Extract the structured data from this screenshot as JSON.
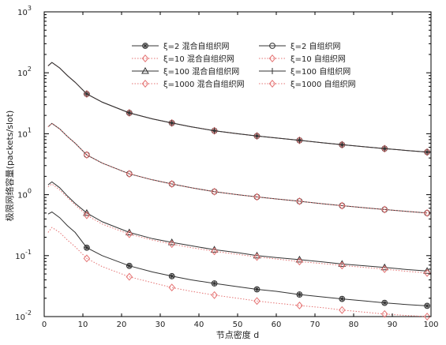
{
  "chart_data": {
    "type": "line",
    "xlabel": "节点密度 d",
    "ylabel": "极限网络容量(packets/slot)",
    "xlim": [
      0,
      100
    ],
    "ylim": [
      0.01,
      1000
    ],
    "yscale": "log",
    "grid": false,
    "legend_position": "top",
    "x_ticks": [
      0,
      10,
      20,
      30,
      40,
      50,
      60,
      70,
      80,
      90,
      100
    ],
    "y_ticks": [
      {
        "base": "10",
        "exp": "-2"
      },
      {
        "base": "10",
        "exp": "-1"
      },
      {
        "base": "10",
        "exp": "0"
      },
      {
        "base": "10",
        "exp": "1"
      },
      {
        "base": "10",
        "exp": "2"
      },
      {
        "base": "10",
        "exp": "3"
      }
    ],
    "x": [
      1,
      2,
      4,
      6,
      8,
      11,
      15,
      22,
      28,
      33,
      38,
      44,
      50,
      55,
      60,
      66,
      72,
      77,
      83,
      88,
      94,
      99
    ],
    "series": [
      {
        "name": "ξ=2 混合自组织网",
        "marker": "circle-asterisk",
        "style": "solid",
        "color": "#333333",
        "values": [
          130,
          148,
          120,
          90,
          70,
          45,
          33,
          22,
          17.5,
          15,
          13,
          11.2,
          10,
          9.2,
          8.5,
          7.8,
          7.1,
          6.6,
          6.1,
          5.7,
          5.3,
          5.0
        ]
      },
      {
        "name": "ξ=2 自组织网",
        "marker": "circle",
        "style": "solid",
        "color": "#333333",
        "values": [
          13,
          14.8,
          12,
          9,
          7,
          4.5,
          3.3,
          2.2,
          1.75,
          1.5,
          1.3,
          1.12,
          1.0,
          0.92,
          0.85,
          0.78,
          0.71,
          0.66,
          0.61,
          0.57,
          0.53,
          0.5
        ]
      },
      {
        "name": "ξ=10 混合自组织网",
        "marker": "diamond",
        "style": "dotted",
        "color": "#e57373",
        "values": [
          130,
          148,
          120,
          90,
          70,
          45,
          33,
          22,
          17.5,
          15,
          13,
          11.2,
          10,
          9.2,
          8.5,
          7.8,
          7.1,
          6.6,
          6.1,
          5.7,
          5.3,
          5.0
        ]
      },
      {
        "name": "ξ=10 自组织网",
        "marker": "diamond",
        "style": "dotted",
        "color": "#e57373",
        "values": [
          13,
          14.8,
          12,
          9,
          7,
          4.5,
          3.3,
          2.2,
          1.75,
          1.5,
          1.3,
          1.12,
          1.0,
          0.92,
          0.85,
          0.78,
          0.71,
          0.66,
          0.61,
          0.57,
          0.53,
          0.5
        ]
      },
      {
        "name": "ξ=100 混合自组织网",
        "marker": "triangle",
        "style": "solid",
        "color": "#333333",
        "values": [
          1.45,
          1.62,
          1.3,
          0.95,
          0.72,
          0.5,
          0.36,
          0.24,
          0.19,
          0.165,
          0.145,
          0.125,
          0.112,
          0.1,
          0.093,
          0.086,
          0.079,
          0.073,
          0.068,
          0.064,
          0.059,
          0.056
        ]
      },
      {
        "name": "ξ=100 自组织网",
        "marker": "plus",
        "style": "solid",
        "color": "#333333",
        "values": [
          130,
          148,
          120,
          90,
          70,
          45,
          33,
          22,
          17.5,
          15,
          13,
          11.2,
          10,
          9.2,
          8.5,
          7.8,
          7.1,
          6.6,
          6.1,
          5.7,
          5.3,
          5.0
        ]
      },
      {
        "name": "ξ=1000 混合自组织网",
        "marker": "diamond",
        "style": "dotted",
        "color": "#e57373",
        "values": [
          1.35,
          1.5,
          1.2,
          0.9,
          0.68,
          0.46,
          0.33,
          0.225,
          0.18,
          0.155,
          0.135,
          0.118,
          0.105,
          0.095,
          0.088,
          0.08,
          0.074,
          0.069,
          0.064,
          0.06,
          0.055,
          0.052
        ]
      },
      {
        "name": "ξ=1000 自组织网",
        "marker": "diamond",
        "style": "dotted",
        "color": "#e57373",
        "values": [
          0.24,
          0.29,
          0.24,
          0.18,
          0.14,
          0.09,
          0.066,
          0.045,
          0.036,
          0.03,
          0.026,
          0.0225,
          0.02,
          0.018,
          0.0166,
          0.0152,
          0.014,
          0.0128,
          0.0118,
          0.011,
          0.0104,
          0.01
        ]
      },
      {
        "name": "",
        "marker": "circle-asterisk",
        "style": "solid",
        "color": "#333333",
        "values": [
          0.48,
          0.52,
          0.42,
          0.31,
          0.24,
          0.135,
          0.1,
          0.068,
          0.054,
          0.046,
          0.04,
          0.035,
          0.031,
          0.028,
          0.026,
          0.023,
          0.021,
          0.0195,
          0.018,
          0.0168,
          0.0157,
          0.015
        ]
      }
    ]
  }
}
